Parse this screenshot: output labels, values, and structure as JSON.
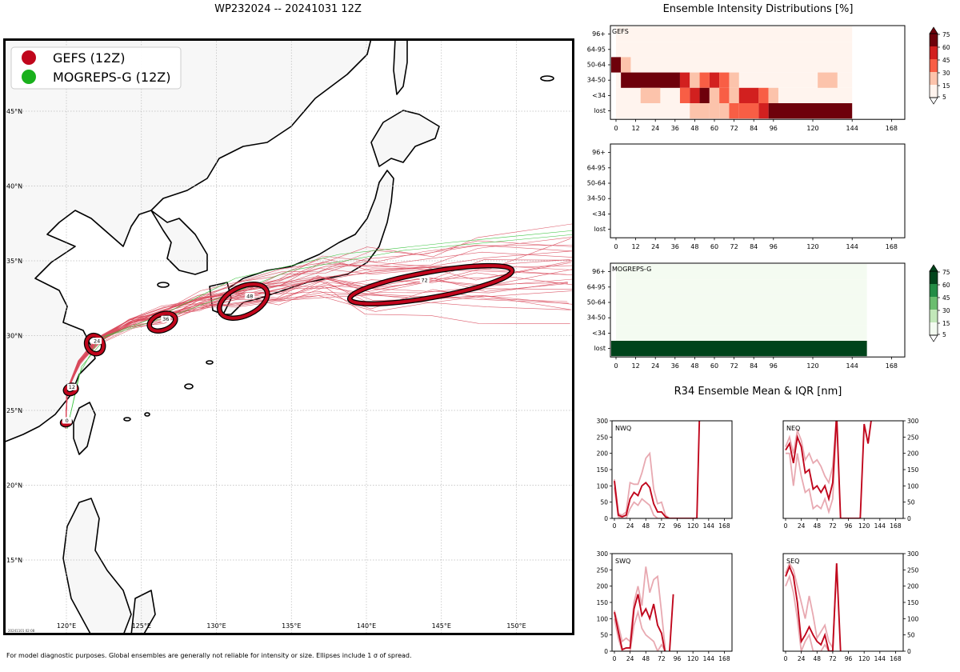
{
  "main_title": "WP232024 -- 20241031 12Z",
  "map": {
    "legend": [
      {
        "label": "GEFS (12Z)",
        "color": "#c0061c"
      },
      {
        "label": "MOGREPS-G (12Z)",
        "color": "#19b01c"
      }
    ],
    "lat_labels": [
      "45°N",
      "40°N",
      "35°N",
      "30°N",
      "25°N",
      "20°N",
      "15°N"
    ],
    "lon_labels": [
      "120°E",
      "125°E",
      "130°E",
      "135°E",
      "140°E",
      "145°E",
      "150°E"
    ],
    "stamp": "20241101 02:08",
    "ellipse_labels": [
      "0",
      "12",
      "24",
      "36",
      "48",
      "72"
    ]
  },
  "intensity": {
    "title": "Ensemble Intensity Distributions [%]",
    "row_labels": [
      "96+",
      "64-95",
      "50-64",
      "34-50",
      "<34",
      "lost"
    ],
    "x_ticks": [
      "0",
      "12",
      "24",
      "36",
      "48",
      "60",
      "72",
      "84",
      "96",
      "120",
      "144",
      "168"
    ],
    "panels": [
      "GEFS",
      "",
      "MOGREPS-G"
    ],
    "colorbar_ticks": [
      "75",
      "60",
      "45",
      "30",
      "15",
      "5"
    ]
  },
  "r34": {
    "title": "R34 Ensemble Mean & IQR [nm]",
    "panels": [
      "NWQ",
      "NEQ",
      "SWQ",
      "SEQ"
    ],
    "x_ticks": [
      "0",
      "24",
      "48",
      "72",
      "96",
      "120",
      "144",
      "168"
    ],
    "y_ticks": [
      "0",
      "50",
      "100",
      "150",
      "200",
      "250",
      "300"
    ]
  },
  "footnote": "For model diagnostic purposes. Global ensembles are generally not reliable for intensity or size. Ellipses include 1 σ of spread.",
  "chart_data": [
    {
      "type": "map",
      "series": [
        {
          "name": "GEFS (12Z)",
          "ellipse_centers": [
            {
              "hour": 0,
              "lon": 120.0,
              "lat": 24.2
            },
            {
              "hour": 12,
              "lon": 120.3,
              "lat": 26.4
            },
            {
              "hour": 24,
              "lon": 121.9,
              "lat": 29.4
            },
            {
              "hour": 36,
              "lon": 126.4,
              "lat": 30.9
            },
            {
              "hour": 48,
              "lon": 131.8,
              "lat": 32.3
            },
            {
              "hour": 72,
              "lon": 144.3,
              "lat": 33.4
            }
          ]
        },
        {
          "name": "MOGREPS-G (12Z)"
        }
      ]
    },
    {
      "type": "heatmap",
      "title": "Ensemble Intensity Distributions [%]",
      "rows": [
        "96+",
        "64-95",
        "50-64",
        "34-50",
        "<34",
        "lost"
      ],
      "x_range": [
        0,
        168
      ],
      "panels": [
        {
          "name": "GEFS"
        },
        {
          "name": ""
        },
        {
          "name": "MOGREPS-G"
        }
      ]
    },
    {
      "type": "line",
      "title": "R34 Ensemble Mean & IQR [nm]",
      "x_range": [
        0,
        168
      ],
      "y_range": [
        0,
        300
      ],
      "panels": [
        {
          "name": "NWQ",
          "mean": [
            [
              0,
              115
            ],
            [
              6,
              10
            ],
            [
              12,
              5
            ],
            [
              18,
              10
            ],
            [
              24,
              60
            ],
            [
              30,
              80
            ],
            [
              36,
              70
            ],
            [
              42,
              100
            ],
            [
              48,
              110
            ],
            [
              54,
              95
            ],
            [
              60,
              45
            ],
            [
              66,
              20
            ],
            [
              72,
              20
            ],
            [
              78,
              5
            ],
            [
              84,
              0
            ],
            [
              90,
              0
            ],
            [
              114,
              0
            ],
            [
              120,
              0
            ],
            [
              126,
              0
            ],
            [
              130,
              320
            ]
          ],
          "upper": [
            [
              0,
              120
            ],
            [
              6,
              15
            ],
            [
              12,
              10
            ],
            [
              18,
              20
            ],
            [
              24,
              110
            ],
            [
              30,
              105
            ],
            [
              36,
              105
            ],
            [
              42,
              140
            ],
            [
              48,
              185
            ],
            [
              54,
              200
            ],
            [
              60,
              90
            ],
            [
              66,
              45
            ],
            [
              72,
              50
            ],
            [
              78,
              10
            ],
            [
              84,
              0
            ],
            [
              90,
              0
            ]
          ],
          "lower": [
            [
              0,
              95
            ],
            [
              6,
              5
            ],
            [
              12,
              0
            ],
            [
              18,
              0
            ],
            [
              24,
              30
            ],
            [
              30,
              50
            ],
            [
              36,
              40
            ],
            [
              42,
              60
            ],
            [
              48,
              50
            ],
            [
              54,
              40
            ],
            [
              60,
              10
            ],
            [
              66,
              0
            ],
            [
              72,
              0
            ],
            [
              78,
              0
            ],
            [
              84,
              0
            ],
            [
              90,
              0
            ]
          ]
        },
        {
          "name": "NEQ",
          "mean": [
            [
              0,
              210
            ],
            [
              6,
              230
            ],
            [
              12,
              170
            ],
            [
              18,
              250
            ],
            [
              24,
              220
            ],
            [
              30,
              140
            ],
            [
              36,
              150
            ],
            [
              42,
              90
            ],
            [
              48,
              100
            ],
            [
              54,
              80
            ],
            [
              60,
              100
            ],
            [
              66,
              60
            ],
            [
              72,
              110
            ],
            [
              78,
              320
            ],
            [
              84,
              0
            ],
            [
              96,
              0
            ],
            [
              108,
              0
            ],
            [
              114,
              0
            ],
            [
              120,
              290
            ],
            [
              126,
              230
            ],
            [
              132,
              320
            ]
          ],
          "upper": [
            [
              0,
              220
            ],
            [
              6,
              250
            ],
            [
              12,
              200
            ],
            [
              18,
              270
            ],
            [
              24,
              240
            ],
            [
              30,
              180
            ],
            [
              36,
              200
            ],
            [
              42,
              170
            ],
            [
              48,
              180
            ],
            [
              54,
              160
            ],
            [
              60,
              130
            ],
            [
              66,
              110
            ],
            [
              72,
              160
            ],
            [
              78,
              320
            ]
          ],
          "lower": [
            [
              0,
              200
            ],
            [
              6,
              200
            ],
            [
              12,
              100
            ],
            [
              18,
              200
            ],
            [
              24,
              130
            ],
            [
              30,
              80
            ],
            [
              36,
              90
            ],
            [
              42,
              30
            ],
            [
              48,
              40
            ],
            [
              54,
              30
            ],
            [
              60,
              60
            ],
            [
              66,
              20
            ],
            [
              72,
              60
            ],
            [
              78,
              300
            ]
          ]
        },
        {
          "name": "SWQ",
          "mean": [
            [
              0,
              120
            ],
            [
              6,
              60
            ],
            [
              12,
              5
            ],
            [
              18,
              10
            ],
            [
              24,
              10
            ],
            [
              30,
              130
            ],
            [
              36,
              175
            ],
            [
              42,
              110
            ],
            [
              48,
              130
            ],
            [
              54,
              100
            ],
            [
              60,
              145
            ],
            [
              66,
              80
            ],
            [
              72,
              55
            ],
            [
              78,
              -10
            ],
            [
              84,
              -10
            ],
            [
              90,
              175
            ]
          ],
          "upper": [
            [
              0,
              125
            ],
            [
              6,
              80
            ],
            [
              12,
              30
            ],
            [
              18,
              40
            ],
            [
              24,
              30
            ],
            [
              30,
              150
            ],
            [
              36,
              200
            ],
            [
              42,
              140
            ],
            [
              48,
              260
            ],
            [
              54,
              180
            ],
            [
              60,
              220
            ],
            [
              66,
              230
            ],
            [
              72,
              120
            ],
            [
              78,
              0
            ]
          ],
          "lower": [
            [
              0,
              100
            ],
            [
              6,
              40
            ],
            [
              12,
              0
            ],
            [
              18,
              0
            ],
            [
              24,
              0
            ],
            [
              30,
              80
            ],
            [
              36,
              120
            ],
            [
              42,
              70
            ],
            [
              48,
              50
            ],
            [
              54,
              40
            ],
            [
              60,
              30
            ],
            [
              66,
              0
            ],
            [
              72,
              20
            ],
            [
              78,
              0
            ]
          ]
        },
        {
          "name": "SEQ",
          "mean": [
            [
              0,
              230
            ],
            [
              6,
              260
            ],
            [
              12,
              230
            ],
            [
              18,
              150
            ],
            [
              24,
              30
            ],
            [
              30,
              50
            ],
            [
              36,
              75
            ],
            [
              42,
              50
            ],
            [
              48,
              30
            ],
            [
              54,
              20
            ],
            [
              60,
              50
            ],
            [
              66,
              0
            ],
            [
              72,
              0
            ],
            [
              78,
              270
            ],
            [
              84,
              0
            ]
          ],
          "upper": [
            [
              0,
              240
            ],
            [
              6,
              270
            ],
            [
              12,
              250
            ],
            [
              18,
              200
            ],
            [
              24,
              150
            ],
            [
              30,
              100
            ],
            [
              36,
              170
            ],
            [
              42,
              110
            ],
            [
              48,
              40
            ],
            [
              54,
              60
            ],
            [
              60,
              80
            ],
            [
              66,
              30
            ],
            [
              72,
              10
            ],
            [
              78,
              270
            ]
          ],
          "lower": [
            [
              0,
              200
            ],
            [
              6,
              230
            ],
            [
              12,
              180
            ],
            [
              18,
              100
            ],
            [
              24,
              0
            ],
            [
              30,
              30
            ],
            [
              36,
              50
            ],
            [
              42,
              0
            ],
            [
              48,
              0
            ],
            [
              54,
              0
            ],
            [
              60,
              20
            ],
            [
              66,
              0
            ],
            [
              72,
              0
            ],
            [
              78,
              260
            ]
          ]
        }
      ]
    }
  ]
}
